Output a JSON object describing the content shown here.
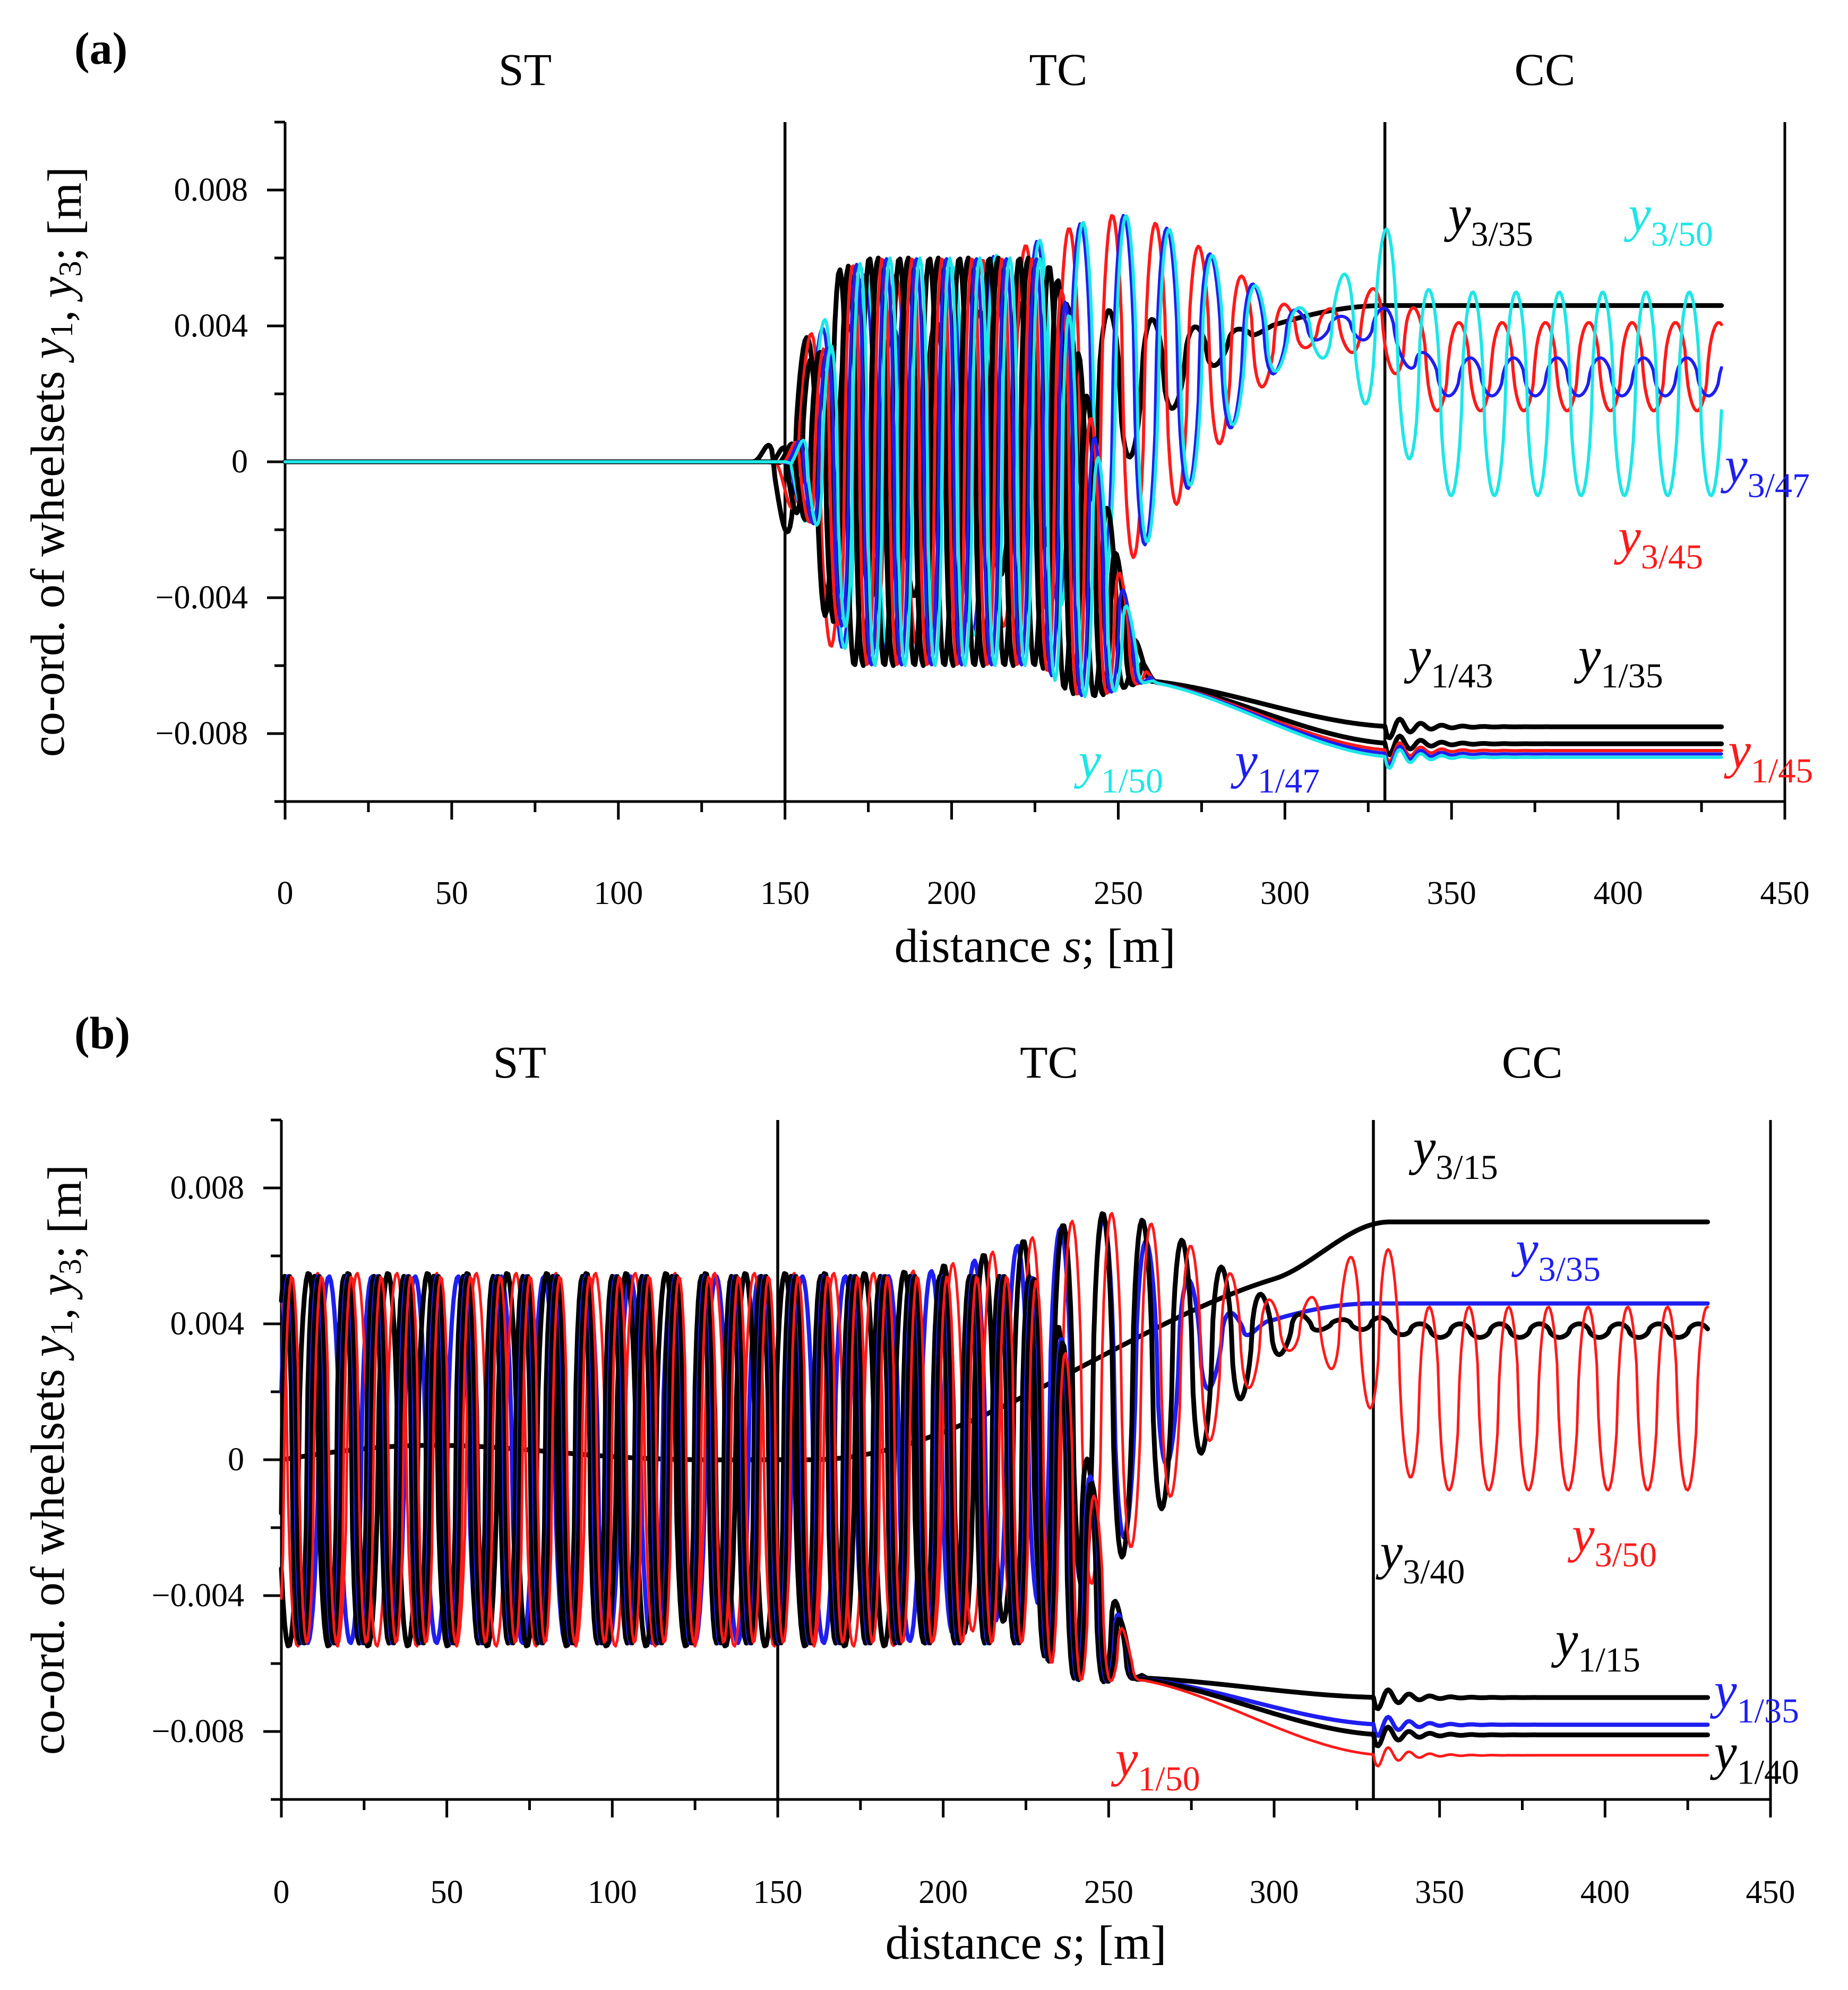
{
  "chart_data": [
    {
      "type": "line",
      "panel_label": "(a)",
      "xlabel": "distance s; [m]",
      "ylabel": "co-ord. of wheelsets y1, y3; [m]",
      "xlim": [
        0,
        450
      ],
      "ylim": [
        -0.01,
        0.01
      ],
      "x_ticks": [
        "0",
        "50",
        "100",
        "150",
        "200",
        "250",
        "300",
        "350",
        "400",
        "450"
      ],
      "y_ticks": [
        "0.008",
        "0.004",
        "0",
        "−0.004",
        "−0.008"
      ],
      "y_tick_values": [
        0.008,
        0.004,
        0,
        -0.004,
        -0.008
      ],
      "segment_labels": [
        {
          "text": "ST",
          "x": 72
        },
        {
          "text": "TC",
          "x": 232
        },
        {
          "text": "CC",
          "x": 378
        }
      ],
      "section_boundaries": [
        150,
        330
      ],
      "colors": {
        "black": "#000000",
        "red": "#ff1a1a",
        "blue": "#1e1ef0",
        "cyan": "#1ee6e6"
      },
      "series": [
        {
          "name": "y3/35",
          "wheelset": "y3",
          "v": "35",
          "color": "#000000",
          "width": 9,
          "kind": "track",
          "onset": 140,
          "final": 0.0046,
          "amp": 0.004,
          "period": 13,
          "decay": 30
        },
        {
          "name": "y3/45",
          "wheelset": "y3",
          "v": "45",
          "color": "#ff1a1a",
          "width": 6,
          "kind": "hunt",
          "onset": 145,
          "final": 0.0028,
          "amp": 0.0013,
          "period": 13,
          "fade": 1.0
        },
        {
          "name": "y3/47",
          "wheelset": "y3",
          "v": "47",
          "color": "#1e1ef0",
          "width": 6,
          "kind": "hunt",
          "onset": 148,
          "final": 0.0025,
          "amp": 0.0008,
          "period": 13,
          "fade": 0.7
        },
        {
          "name": "y3/50",
          "wheelset": "y3",
          "v": "50",
          "color": "#1ee6e6",
          "width": 6,
          "kind": "hunt",
          "onset": 148,
          "final": 0.002,
          "amp": 0.003,
          "period": 13,
          "fade": 1.0
        },
        {
          "name": "y1/35",
          "wheelset": "y1",
          "v": "35",
          "color": "#000000",
          "width": 9,
          "kind": "flange",
          "onset": 145,
          "final": -0.0078,
          "amp": 0.006,
          "period": 9
        },
        {
          "name": "y1/43",
          "wheelset": "y1",
          "v": "43",
          "color": "#000000",
          "width": 9,
          "kind": "flange",
          "onset": 147,
          "final": -0.0083,
          "amp": 0.006,
          "period": 9
        },
        {
          "name": "y1/45",
          "wheelset": "y1",
          "v": "45",
          "color": "#ff1a1a",
          "width": 6,
          "kind": "flange",
          "onset": 148,
          "final": -0.0085,
          "amp": 0.006,
          "period": 9
        },
        {
          "name": "y1/47",
          "wheelset": "y1",
          "v": "47",
          "color": "#1e1ef0",
          "width": 6,
          "kind": "flange",
          "onset": 149,
          "final": -0.0086,
          "amp": 0.006,
          "period": 9
        },
        {
          "name": "y1/50",
          "wheelset": "y1",
          "v": "50",
          "color": "#1ee6e6",
          "width": 6,
          "kind": "flange",
          "onset": 150,
          "final": -0.0087,
          "amp": 0.006,
          "period": 9
        }
      ],
      "annotations": [
        {
          "main": "y",
          "sub": "3/35",
          "color": "#000000",
          "x": 349,
          "y": 0.0068
        },
        {
          "main": "y",
          "sub": "3/50",
          "color": "#1ee6e6",
          "x": 403,
          "y": 0.0068
        },
        {
          "main": "y",
          "sub": "3/47",
          "color": "#1e1ef0",
          "x": 432,
          "y": -0.0006
        },
        {
          "main": "y",
          "sub": "3/45",
          "color": "#ff1a1a",
          "x": 400,
          "y": -0.0027
        },
        {
          "main": "y",
          "sub": "1/43",
          "color": "#000000",
          "x": 337,
          "y": -0.0062
        },
        {
          "main": "y",
          "sub": "1/35",
          "color": "#000000",
          "x": 388,
          "y": -0.0062
        },
        {
          "main": "y",
          "sub": "1/45",
          "color": "#ff1a1a",
          "x": 433,
          "y": -0.009
        },
        {
          "main": "y",
          "sub": "1/50",
          "color": "#1ee6e6",
          "x": 238,
          "y": -0.0093
        },
        {
          "main": "y",
          "sub": "1/47",
          "color": "#1e1ef0",
          "x": 285,
          "y": -0.0093
        }
      ]
    },
    {
      "type": "line",
      "panel_label": "(b)",
      "xlabel": "distance s; [m]",
      "ylabel": "co-ord. of wheelsets y1, y3; [m]",
      "xlim": [
        0,
        450
      ],
      "ylim": [
        -0.01,
        0.01
      ],
      "x_ticks": [
        "0",
        "50",
        "100",
        "150",
        "200",
        "250",
        "300",
        "350",
        "400",
        "450"
      ],
      "y_ticks": [
        "0.008",
        "0.004",
        "0",
        "−0.004",
        "−0.008"
      ],
      "y_tick_values": [
        0.008,
        0.004,
        0,
        -0.004,
        -0.008
      ],
      "segment_labels": [
        {
          "text": "ST",
          "x": 72
        },
        {
          "text": "TC",
          "x": 232
        },
        {
          "text": "CC",
          "x": 378
        }
      ],
      "section_boundaries": [
        150,
        330
      ],
      "colors": {
        "black": "#000000",
        "red": "#ff1a1a",
        "blue": "#1e1ef0"
      },
      "series": [
        {
          "name": "y3/15",
          "wheelset": "y3",
          "v": "15",
          "color": "#000000",
          "width": 9,
          "kind": "smooth",
          "final": 0.007,
          "amp": 0.0,
          "period": 8
        },
        {
          "name": "y3/35",
          "wheelset": "y3",
          "v": "35",
          "color": "#1e1ef0",
          "width": 8,
          "kind": "track",
          "onset": 0,
          "final": 0.0046,
          "amp": 0.0054,
          "period": 13,
          "decay": 60
        },
        {
          "name": "y3/40",
          "wheelset": "y3",
          "v": "40",
          "color": "#000000",
          "width": 9,
          "kind": "hunt",
          "onset": 0,
          "final": 0.0038,
          "amp": 0.0005,
          "period": 12,
          "fade": 0.4
        },
        {
          "name": "y3/50",
          "wheelset": "y3",
          "v": "50",
          "color": "#ff1a1a",
          "width": 5,
          "kind": "hunt",
          "onset": 0,
          "final": 0.0018,
          "amp": 0.0027,
          "period": 12,
          "fade": 1.0
        },
        {
          "name": "y1/15",
          "wheelset": "y1",
          "v": "15",
          "color": "#000000",
          "width": 9,
          "kind": "flange",
          "onset": 0,
          "final": -0.007,
          "amp": 0.0054,
          "period": 9
        },
        {
          "name": "y1/35",
          "wheelset": "y1",
          "v": "35",
          "color": "#1e1ef0",
          "width": 8,
          "kind": "flange",
          "onset": 0,
          "final": -0.0078,
          "amp": 0.0054,
          "period": 9
        },
        {
          "name": "y1/40",
          "wheelset": "y1",
          "v": "40",
          "color": "#000000",
          "width": 9,
          "kind": "flange",
          "onset": 0,
          "final": -0.0081,
          "amp": 0.0054,
          "period": 9
        },
        {
          "name": "y1/50",
          "wheelset": "y1",
          "v": "50",
          "color": "#ff1a1a",
          "width": 5,
          "kind": "flange",
          "onset": 0,
          "final": -0.0087,
          "amp": 0.0054,
          "period": 9
        }
      ],
      "annotations": [
        {
          "main": "y",
          "sub": "3/15",
          "color": "#000000",
          "x": 342,
          "y": 0.0087
        },
        {
          "main": "y",
          "sub": "3/35",
          "color": "#1e1ef0",
          "x": 373,
          "y": 0.0057
        },
        {
          "main": "y",
          "sub": "3/40",
          "color": "#000000",
          "x": 332,
          "y": -0.0032
        },
        {
          "main": "y",
          "sub": "3/50",
          "color": "#ff1a1a",
          "x": 390,
          "y": -0.0027
        },
        {
          "main": "y",
          "sub": "1/15",
          "color": "#000000",
          "x": 385,
          "y": -0.0058
        },
        {
          "main": "y",
          "sub": "1/35",
          "color": "#1e1ef0",
          "x": 433,
          "y": -0.0073
        },
        {
          "main": "y",
          "sub": "1/40",
          "color": "#000000",
          "x": 433,
          "y": -0.0091
        },
        {
          "main": "y",
          "sub": "1/50",
          "color": "#ff1a1a",
          "x": 252,
          "y": -0.0093
        }
      ]
    }
  ]
}
